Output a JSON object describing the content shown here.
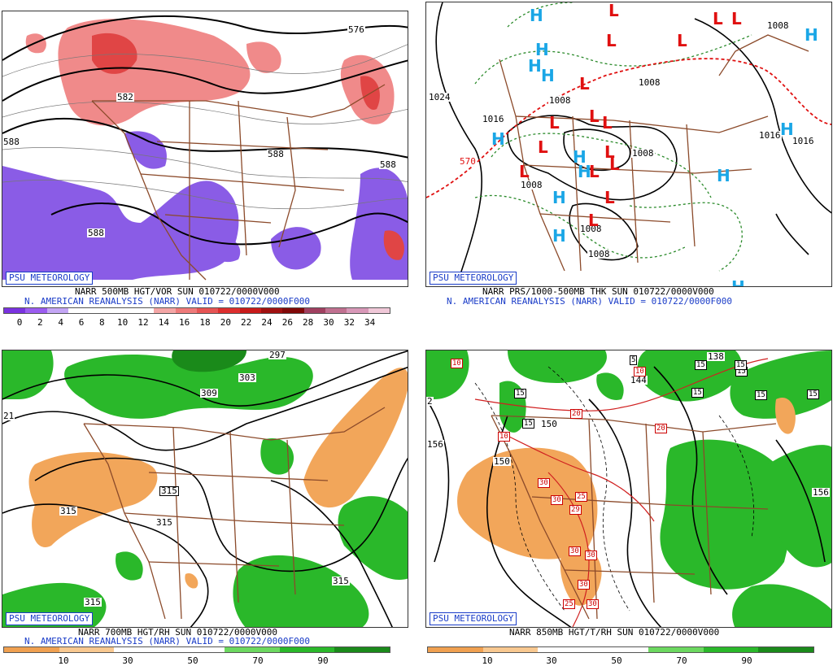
{
  "badge": "PSU METEOROLOGY",
  "panels": [
    {
      "id": "p1",
      "caption1": "NARR 500MB HGT/VOR SUN 010722/0000V000",
      "caption2": "N. AMERICAN REANALYSIS (NARR) VALID = 010722/0000F000",
      "labels": [
        "576",
        "582",
        "588",
        "588",
        "588",
        "588",
        "582"
      ],
      "colorbar": {
        "ticks": [
          "0",
          "2",
          "4",
          "6",
          "8",
          "10",
          "12",
          "14",
          "16",
          "18",
          "20",
          "22",
          "24",
          "26",
          "28",
          "30",
          "32",
          "34"
        ],
        "colors": [
          "#7a32e0",
          "#9b5cf0",
          "#c4a6f5",
          "#ffffff",
          "#ffffff",
          "#ffffff",
          "#ffffff",
          "#f4a6a6",
          "#ee7a7a",
          "#e65454",
          "#dd2e2e",
          "#c81a1a",
          "#a01010",
          "#800808",
          "#a04060",
          "#c07090",
          "#d898b8",
          "#f0c8d8"
        ]
      }
    },
    {
      "id": "p2",
      "caption1": "NARR PRS/1000-500MB THK SUN 010722/0000V000",
      "caption2": "N. AMERICAN REANALYSIS (NARR) VALID = 010722/0000F000",
      "labels": [
        "1024",
        "1016",
        "1008",
        "1008",
        "1008",
        "1008",
        "1008",
        "1008",
        "1016",
        "1016",
        "1008",
        "570"
      ],
      "highs": 13,
      "lows": 16
    },
    {
      "id": "p3",
      "caption1": "NARR 700MB HGT/RH SUN 010722/0000V000",
      "caption2": "N. AMERICAN REANALYSIS (NARR) VALID = 010722/0000F000",
      "labels": [
        "297",
        "303",
        "309",
        "315",
        "315",
        "315",
        "315",
        "315",
        "21"
      ],
      "colorbar": {
        "ticks": [
          "10",
          "30",
          "50",
          "70",
          "90"
        ],
        "colors": [
          "#f0a050",
          "#f8c890",
          "#ffffff",
          "#ffffff",
          "#6cd860",
          "#2ab82a",
          "#1a8a1a"
        ]
      }
    },
    {
      "id": "p4",
      "caption1": "NARR 850MB HGT/T/RH SUN 010722/0000V000",
      "labels": [
        "156",
        "150",
        "150",
        "144",
        "156",
        "2",
        "138"
      ],
      "boxes_black": [
        "5",
        "15",
        "15",
        "15",
        "15",
        "15",
        "15",
        "15",
        "15"
      ],
      "boxes_red": [
        "10",
        "10",
        "10",
        "20",
        "20",
        "30",
        "30",
        "25",
        "29",
        "30",
        "30",
        "30",
        "25",
        "30"
      ],
      "colorbar": {
        "ticks": [
          "10",
          "30",
          "50",
          "70",
          "90"
        ],
        "colors": [
          "#f0a050",
          "#f8c890",
          "#ffffff",
          "#ffffff",
          "#6cd860",
          "#2ab82a",
          "#1a8a1a"
        ]
      }
    }
  ]
}
